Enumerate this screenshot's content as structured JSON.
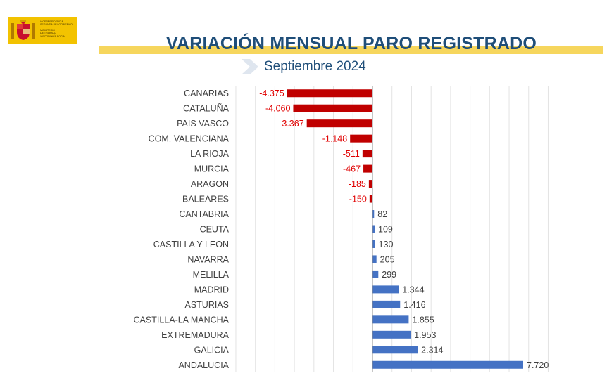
{
  "header": {
    "title": "VARIACIÓN MENSUAL PARO REGISTRADO",
    "subtitle": "Septiembre 2024",
    "logo_lines": [
      "VICEPRESIDENCIA",
      "SEGUNDA DEL GOBIERNO",
      "MINISTERIO",
      "DE TRABAJO",
      "Y ECONOMÍA SOCIAL"
    ]
  },
  "colors": {
    "title": "#1f4e79",
    "negative_bar": "#c00000",
    "positive_bar": "#4472c4",
    "negative_label": "#e00000",
    "positive_label": "#404040",
    "category_label": "#404040",
    "band": "#f6d65d",
    "logo": "#f3c300"
  },
  "chart_data": {
    "type": "bar",
    "orientation": "horizontal",
    "categories": [
      "CANARIAS",
      "CATALUÑA",
      "PAIS VASCO",
      "COM. VALENCIANA",
      "LA RIOJA",
      "MURCIA",
      "ARAGON",
      "BALEARES",
      "CANTABRIA",
      "CEUTA",
      "CASTILLA Y LEON",
      "NAVARRA",
      "MELILLA",
      "MADRID",
      "ASTURIAS",
      "CASTILLA-LA MANCHA",
      "EXTREMADURA",
      "GALICIA",
      "ANDALUCIA"
    ],
    "values": [
      -4375,
      -4060,
      -3367,
      -1148,
      -511,
      -467,
      -185,
      -150,
      82,
      109,
      130,
      205,
      299,
      1344,
      1416,
      1855,
      1953,
      2314,
      7720
    ],
    "value_labels": [
      "-4.375",
      "-4.060",
      "-3.367",
      "-1.148",
      "-511",
      "-467",
      "-185",
      "-150",
      "82",
      "109",
      "130",
      "205",
      "299",
      "1.344",
      "1.416",
      "1.855",
      "1.953",
      "2.314",
      "7.720"
    ],
    "xlim": [
      -7000,
      9000
    ],
    "grid": true
  }
}
